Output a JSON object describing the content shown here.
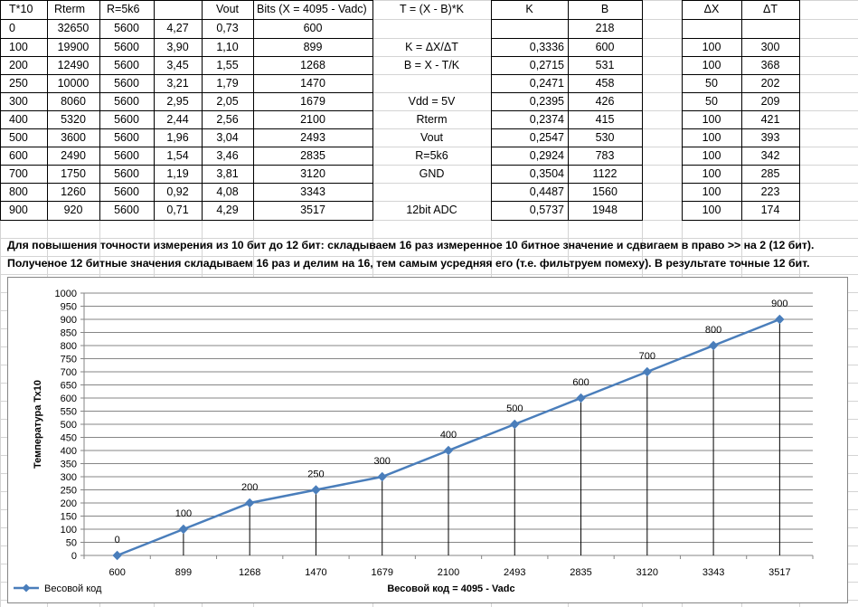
{
  "table": {
    "headers": [
      "T*10",
      "Rterm",
      "R=5k6",
      "",
      "Vout",
      "Bits (X = 4095 - Vadc)",
      "T = (X - B)*K",
      "K",
      "B",
      "",
      "ΔX",
      "ΔT"
    ],
    "rows": [
      [
        "0",
        "32650",
        "5600",
        "4,27",
        "0,73",
        "600",
        "",
        "",
        "218",
        "",
        "",
        ""
      ],
      [
        "100",
        "19900",
        "5600",
        "3,90",
        "1,10",
        "899",
        "K = ΔX/ΔT",
        "0,3336",
        "600",
        "",
        "100",
        "300"
      ],
      [
        "200",
        "12490",
        "5600",
        "3,45",
        "1,55",
        "1268",
        "B = X - T/K",
        "0,2715",
        "531",
        "",
        "100",
        "368"
      ],
      [
        "250",
        "10000",
        "5600",
        "3,21",
        "1,79",
        "1470",
        "",
        "0,2471",
        "458",
        "",
        "50",
        "202"
      ],
      [
        "300",
        "8060",
        "5600",
        "2,95",
        "2,05",
        "1679",
        "Vdd = 5V",
        "0,2395",
        "426",
        "",
        "50",
        "209"
      ],
      [
        "400",
        "5320",
        "5600",
        "2,44",
        "2,56",
        "2100",
        "Rterm",
        "0,2374",
        "415",
        "",
        "100",
        "421"
      ],
      [
        "500",
        "3600",
        "5600",
        "1,96",
        "3,04",
        "2493",
        "Vout",
        "0,2547",
        "530",
        "",
        "100",
        "393"
      ],
      [
        "600",
        "2490",
        "5600",
        "1,54",
        "3,46",
        "2835",
        "R=5k6",
        "0,2924",
        "783",
        "",
        "100",
        "342"
      ],
      [
        "700",
        "1750",
        "5600",
        "1,19",
        "3,81",
        "3120",
        "GND",
        "0,3504",
        "1122",
        "",
        "100",
        "285"
      ],
      [
        "800",
        "1260",
        "5600",
        "0,92",
        "4,08",
        "3343",
        "",
        "0,4487",
        "1560",
        "",
        "100",
        "223"
      ],
      [
        "900",
        "920",
        "5600",
        "0,71",
        "4,29",
        "3517",
        "12bit ADC",
        "0,5737",
        "1948",
        "",
        "100",
        "174"
      ]
    ]
  },
  "notes": {
    "line1": "Для повышения точности измерения из 10 бит до 12 бит: складываем 16 раз измеренное 10 битное значение и сдвигаем в право >> на 2 (12 бит).",
    "line2": "Полученое 12 битные значения складываем 16 раз и делим на 16, тем самым усредняя его (т.е. фильтруем помеху). В результате точные 12 бит."
  },
  "chart_data": {
    "type": "line",
    "categories": [
      "600",
      "899",
      "1268",
      "1470",
      "1679",
      "2100",
      "2493",
      "2835",
      "3120",
      "3343",
      "3517"
    ],
    "series": [
      {
        "name": "Весовой код",
        "values": [
          0,
          100,
          200,
          250,
          300,
          400,
          500,
          600,
          700,
          800,
          900
        ],
        "color": "#4a7ebb"
      }
    ],
    "xlabel": "Весовой код  = 4095 - Vadc",
    "ylabel": "Температура  Тх10",
    "ylim": [
      0,
      1000
    ],
    "ytick_step": 50,
    "grid": true,
    "legend": "bottom-left",
    "drop_lines": true,
    "data_labels": true
  }
}
